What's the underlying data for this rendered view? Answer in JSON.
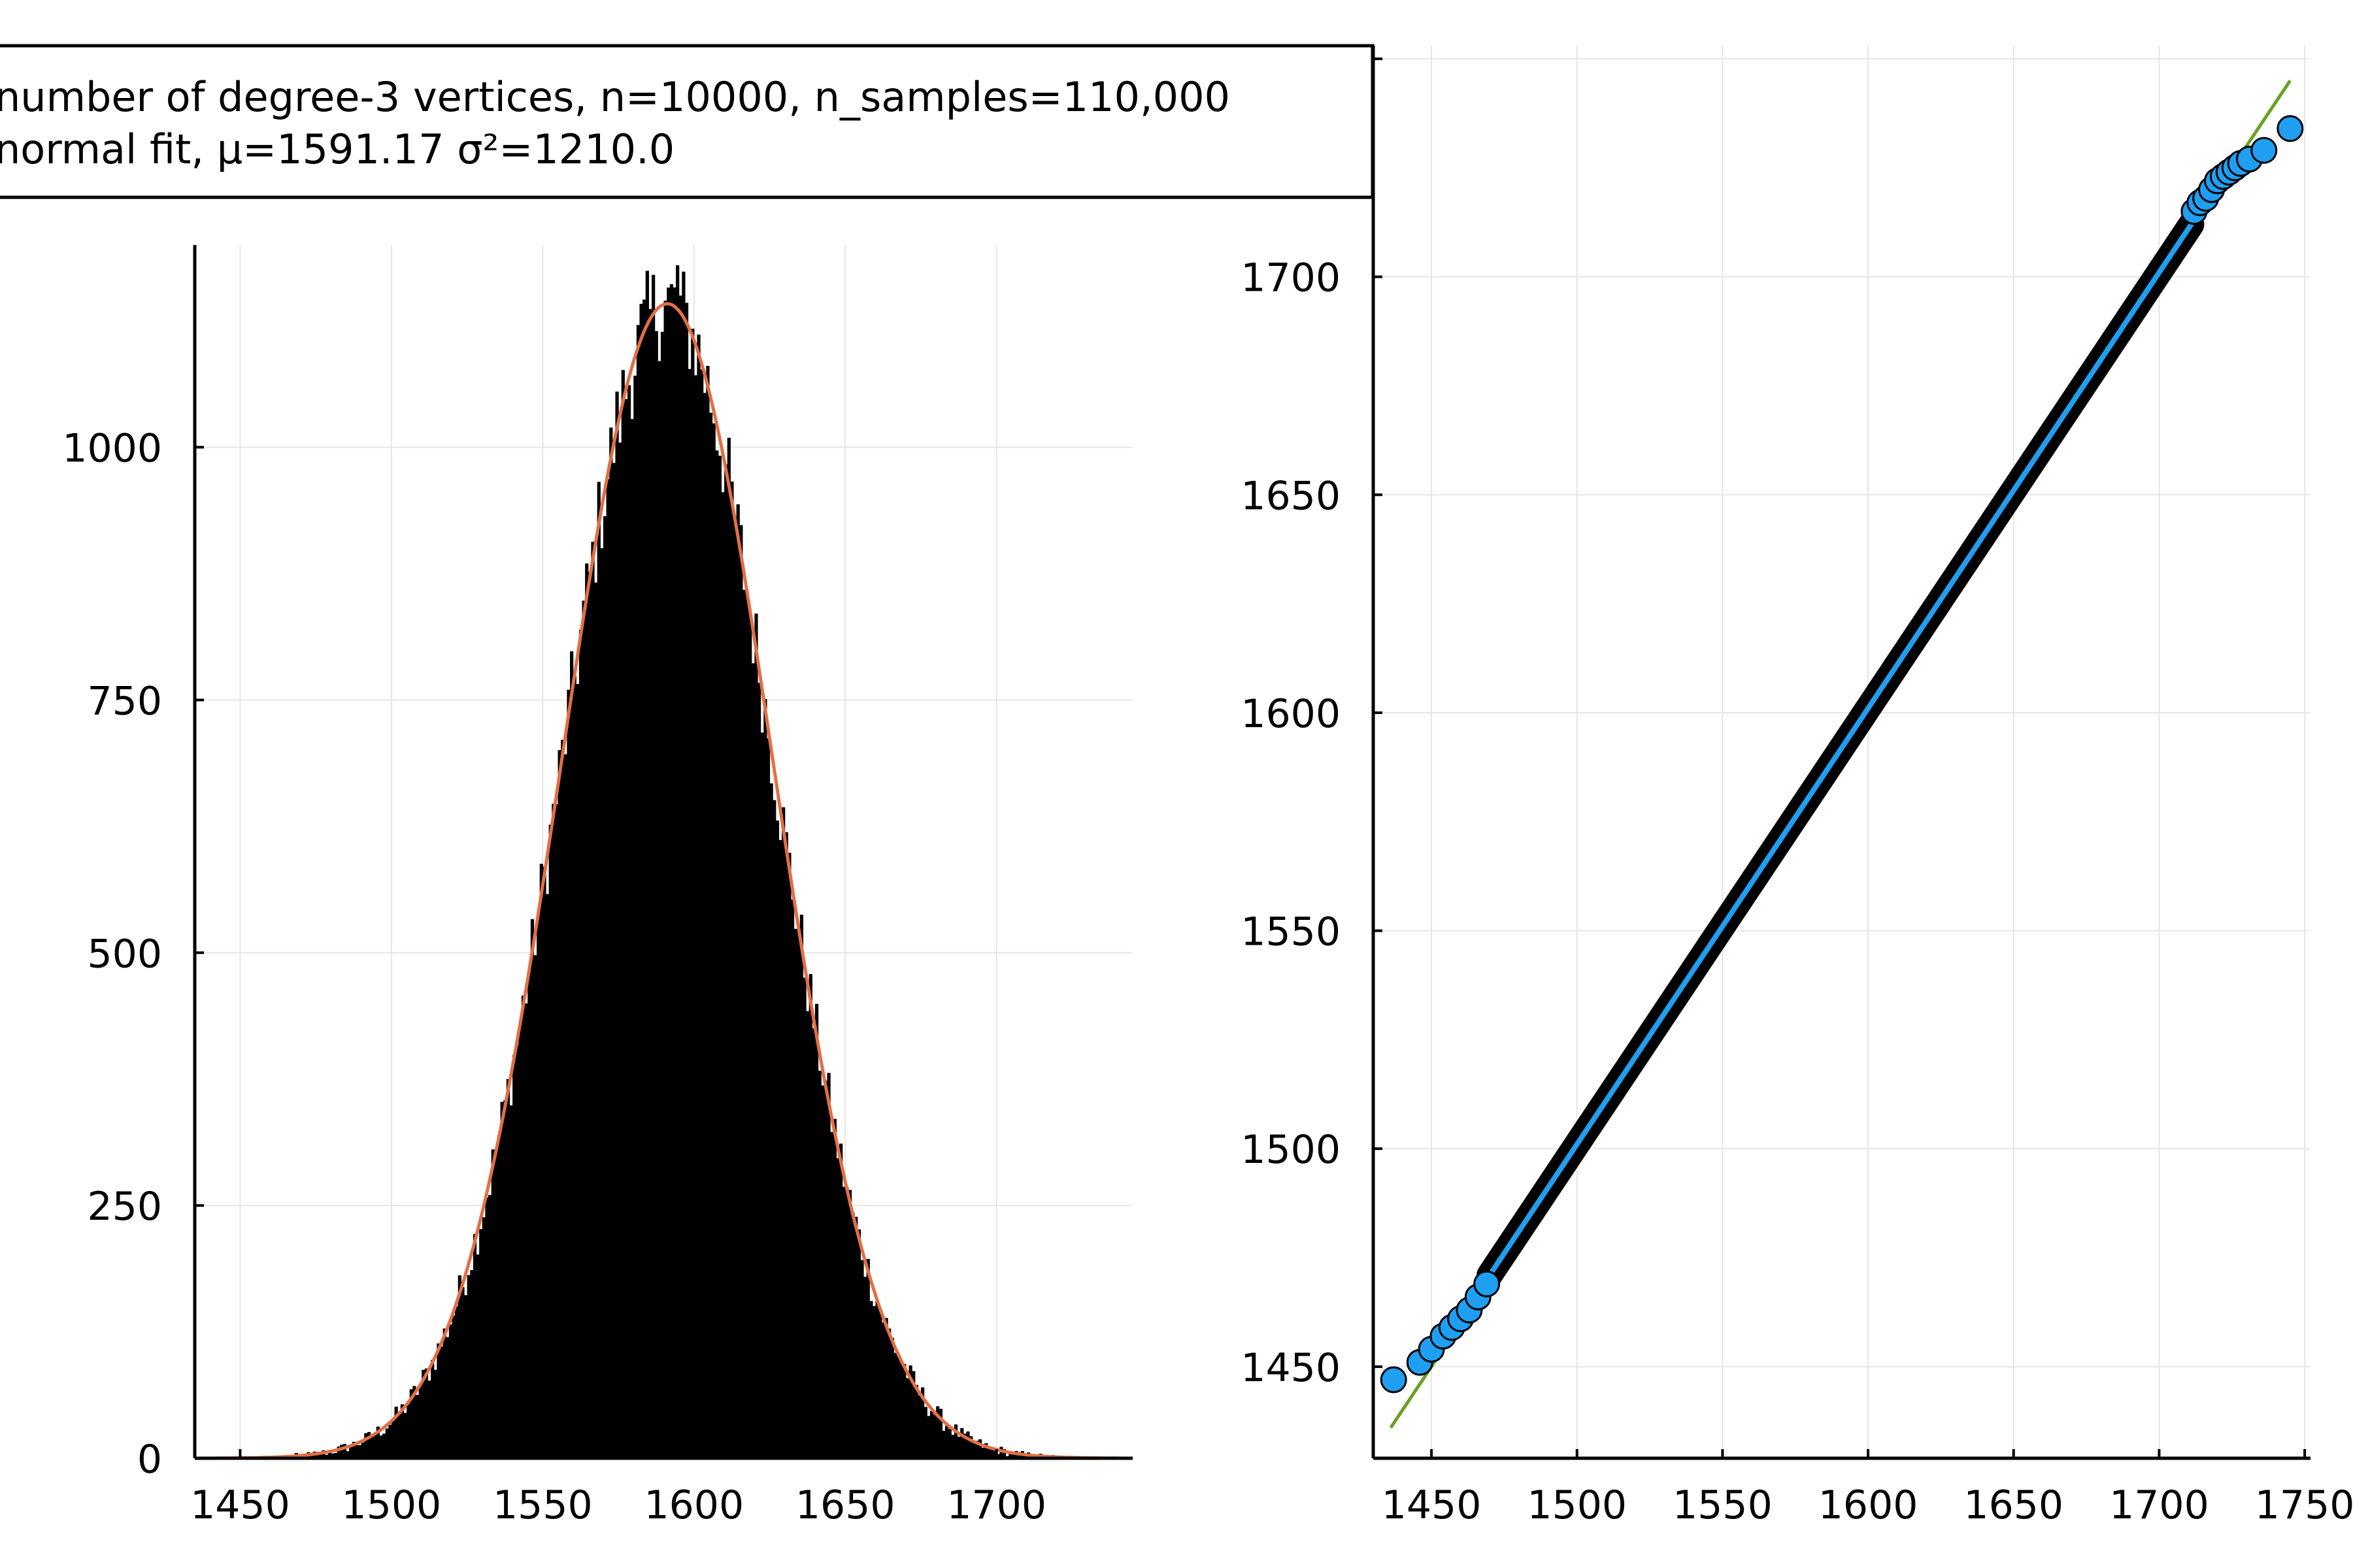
{
  "chart_data": [
    {
      "type": "bar",
      "panel": "histogram",
      "legend_entries": [
        "number of degree-3 vertices, n=10000, n_samples=110,000",
        "normal fit, μ=1591.17 σ²=1210.0"
      ],
      "legend_placement": "top, spanning left panel",
      "xlim": [
        1435,
        1745
      ],
      "ylim": [
        0,
        1200
      ],
      "x_ticks": [
        "1450",
        "1500",
        "1550",
        "1600",
        "1650",
        "1700"
      ],
      "y_ticks": [
        "0",
        "250",
        "500",
        "750",
        "1000"
      ],
      "grid": true,
      "bin_width": 1,
      "histogram_peak": 1180,
      "series": [
        {
          "name": "number of degree-3 vertices, n=10000, n_samples=110,000",
          "kind": "histogram",
          "color": "#000000"
        },
        {
          "name": "normal fit, μ=1591.17 σ²=1210.0",
          "kind": "line",
          "color": "#e26f46",
          "mu": 1591.17,
          "sigma2": 1210.0,
          "peak": 1142
        }
      ]
    },
    {
      "type": "scatter",
      "panel": "qq-plot",
      "xlim": [
        1430,
        1752
      ],
      "ylim": [
        1429,
        1753
      ],
      "x_ticks": [
        "1450",
        "1500",
        "1550",
        "1600",
        "1650",
        "1700",
        "1750"
      ],
      "y_ticks": [
        "1450",
        "1500",
        "1550",
        "1600",
        "1650",
        "1700",
        "1750"
      ],
      "grid": true,
      "reference_line": {
        "color": "#6aa022",
        "from": [
          1436,
          1436
        ],
        "to": [
          1745,
          1745
        ]
      },
      "points_color": "#1f9ff2",
      "sparse_points": [
        [
          1437,
          1447
        ],
        [
          1446,
          1451
        ],
        [
          1450,
          1454
        ],
        [
          1454,
          1457
        ],
        [
          1457,
          1459
        ],
        [
          1460,
          1461
        ],
        [
          1463,
          1463
        ],
        [
          1466,
          1466
        ],
        [
          1469,
          1469
        ],
        [
          1712,
          1715
        ],
        [
          1714,
          1717
        ],
        [
          1716,
          1718
        ],
        [
          1718,
          1720
        ],
        [
          1720,
          1722
        ],
        [
          1722,
          1723
        ],
        [
          1724,
          1724
        ],
        [
          1726,
          1725
        ],
        [
          1728,
          1726
        ],
        [
          1731,
          1727
        ],
        [
          1736,
          1729
        ],
        [
          1745,
          1734
        ]
      ],
      "dense_range": [
        1470,
        1711
      ]
    }
  ]
}
